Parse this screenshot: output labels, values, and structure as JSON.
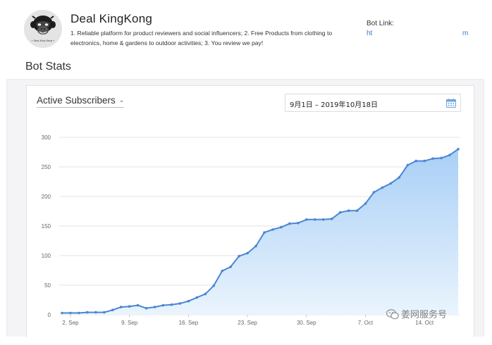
{
  "bot": {
    "name": "Deal KingKong",
    "description": "1. Reliable platform for product reviewers and social influencers; 2. Free Products from clothing to electronics, home & gardens to outdoor activities; 3. You review we pay!",
    "avatar_caption": "• Deal King Kong •",
    "link_label": "Bot Link:",
    "link_start": "ht",
    "link_end": "m"
  },
  "section_title": "Bot Stats",
  "controls": {
    "metric": "Active Subscribers",
    "date_range": "9月1日 – 2019年10月18日",
    "calendar_icon": "calendar-icon",
    "chevron_icon": "chevron-down-icon"
  },
  "watermark": {
    "text": "姜网服务号",
    "icon": "wechat-icon"
  },
  "colors": {
    "line": "#4a86d4",
    "fill_top": "#a9cff6",
    "fill_bottom": "#eaf4fd",
    "grid": "#e4e4e4",
    "link": "#3a7bd5",
    "panel_bg": "#f4f4f6"
  },
  "chart_data": {
    "type": "area",
    "title": "",
    "xlabel": "",
    "ylabel": "",
    "ylim": [
      0,
      300
    ],
    "yticks": [
      0,
      50,
      100,
      150,
      200,
      250,
      300
    ],
    "grid": true,
    "x_tick_labels": [
      "2. Sep",
      "9. Sep",
      "16. Sep",
      "23. Sep",
      "30. Sep",
      "7. Oct",
      "14. Oct"
    ],
    "x_tick_dates": [
      "2019-09-02",
      "2019-09-09",
      "2019-09-16",
      "2019-09-23",
      "2019-09-30",
      "2019-10-07",
      "2019-10-14"
    ],
    "x": [
      "2019-09-01",
      "2019-09-02",
      "2019-09-03",
      "2019-09-04",
      "2019-09-05",
      "2019-09-06",
      "2019-09-07",
      "2019-09-08",
      "2019-09-09",
      "2019-09-10",
      "2019-09-11",
      "2019-09-12",
      "2019-09-13",
      "2019-09-14",
      "2019-09-15",
      "2019-09-16",
      "2019-09-17",
      "2019-09-18",
      "2019-09-19",
      "2019-09-20",
      "2019-09-21",
      "2019-09-22",
      "2019-09-23",
      "2019-09-24",
      "2019-09-25",
      "2019-09-26",
      "2019-09-27",
      "2019-09-28",
      "2019-09-29",
      "2019-09-30",
      "2019-10-01",
      "2019-10-02",
      "2019-10-03",
      "2019-10-04",
      "2019-10-05",
      "2019-10-06",
      "2019-10-07",
      "2019-10-08",
      "2019-10-09",
      "2019-10-10",
      "2019-10-11",
      "2019-10-12",
      "2019-10-13",
      "2019-10-14",
      "2019-10-15",
      "2019-10-16",
      "2019-10-17",
      "2019-10-18"
    ],
    "series": [
      {
        "values": [
          3,
          3,
          3,
          4,
          4,
          4,
          8,
          13,
          14,
          16,
          11,
          13,
          16,
          17,
          19,
          23,
          29,
          35,
          49,
          74,
          81,
          99,
          104,
          116,
          139,
          144,
          148,
          154,
          155,
          161,
          161,
          161,
          162,
          173,
          176,
          176,
          188,
          207,
          215,
          222,
          232,
          253,
          260,
          260,
          264,
          265,
          270,
          280
        ]
      }
    ]
  }
}
